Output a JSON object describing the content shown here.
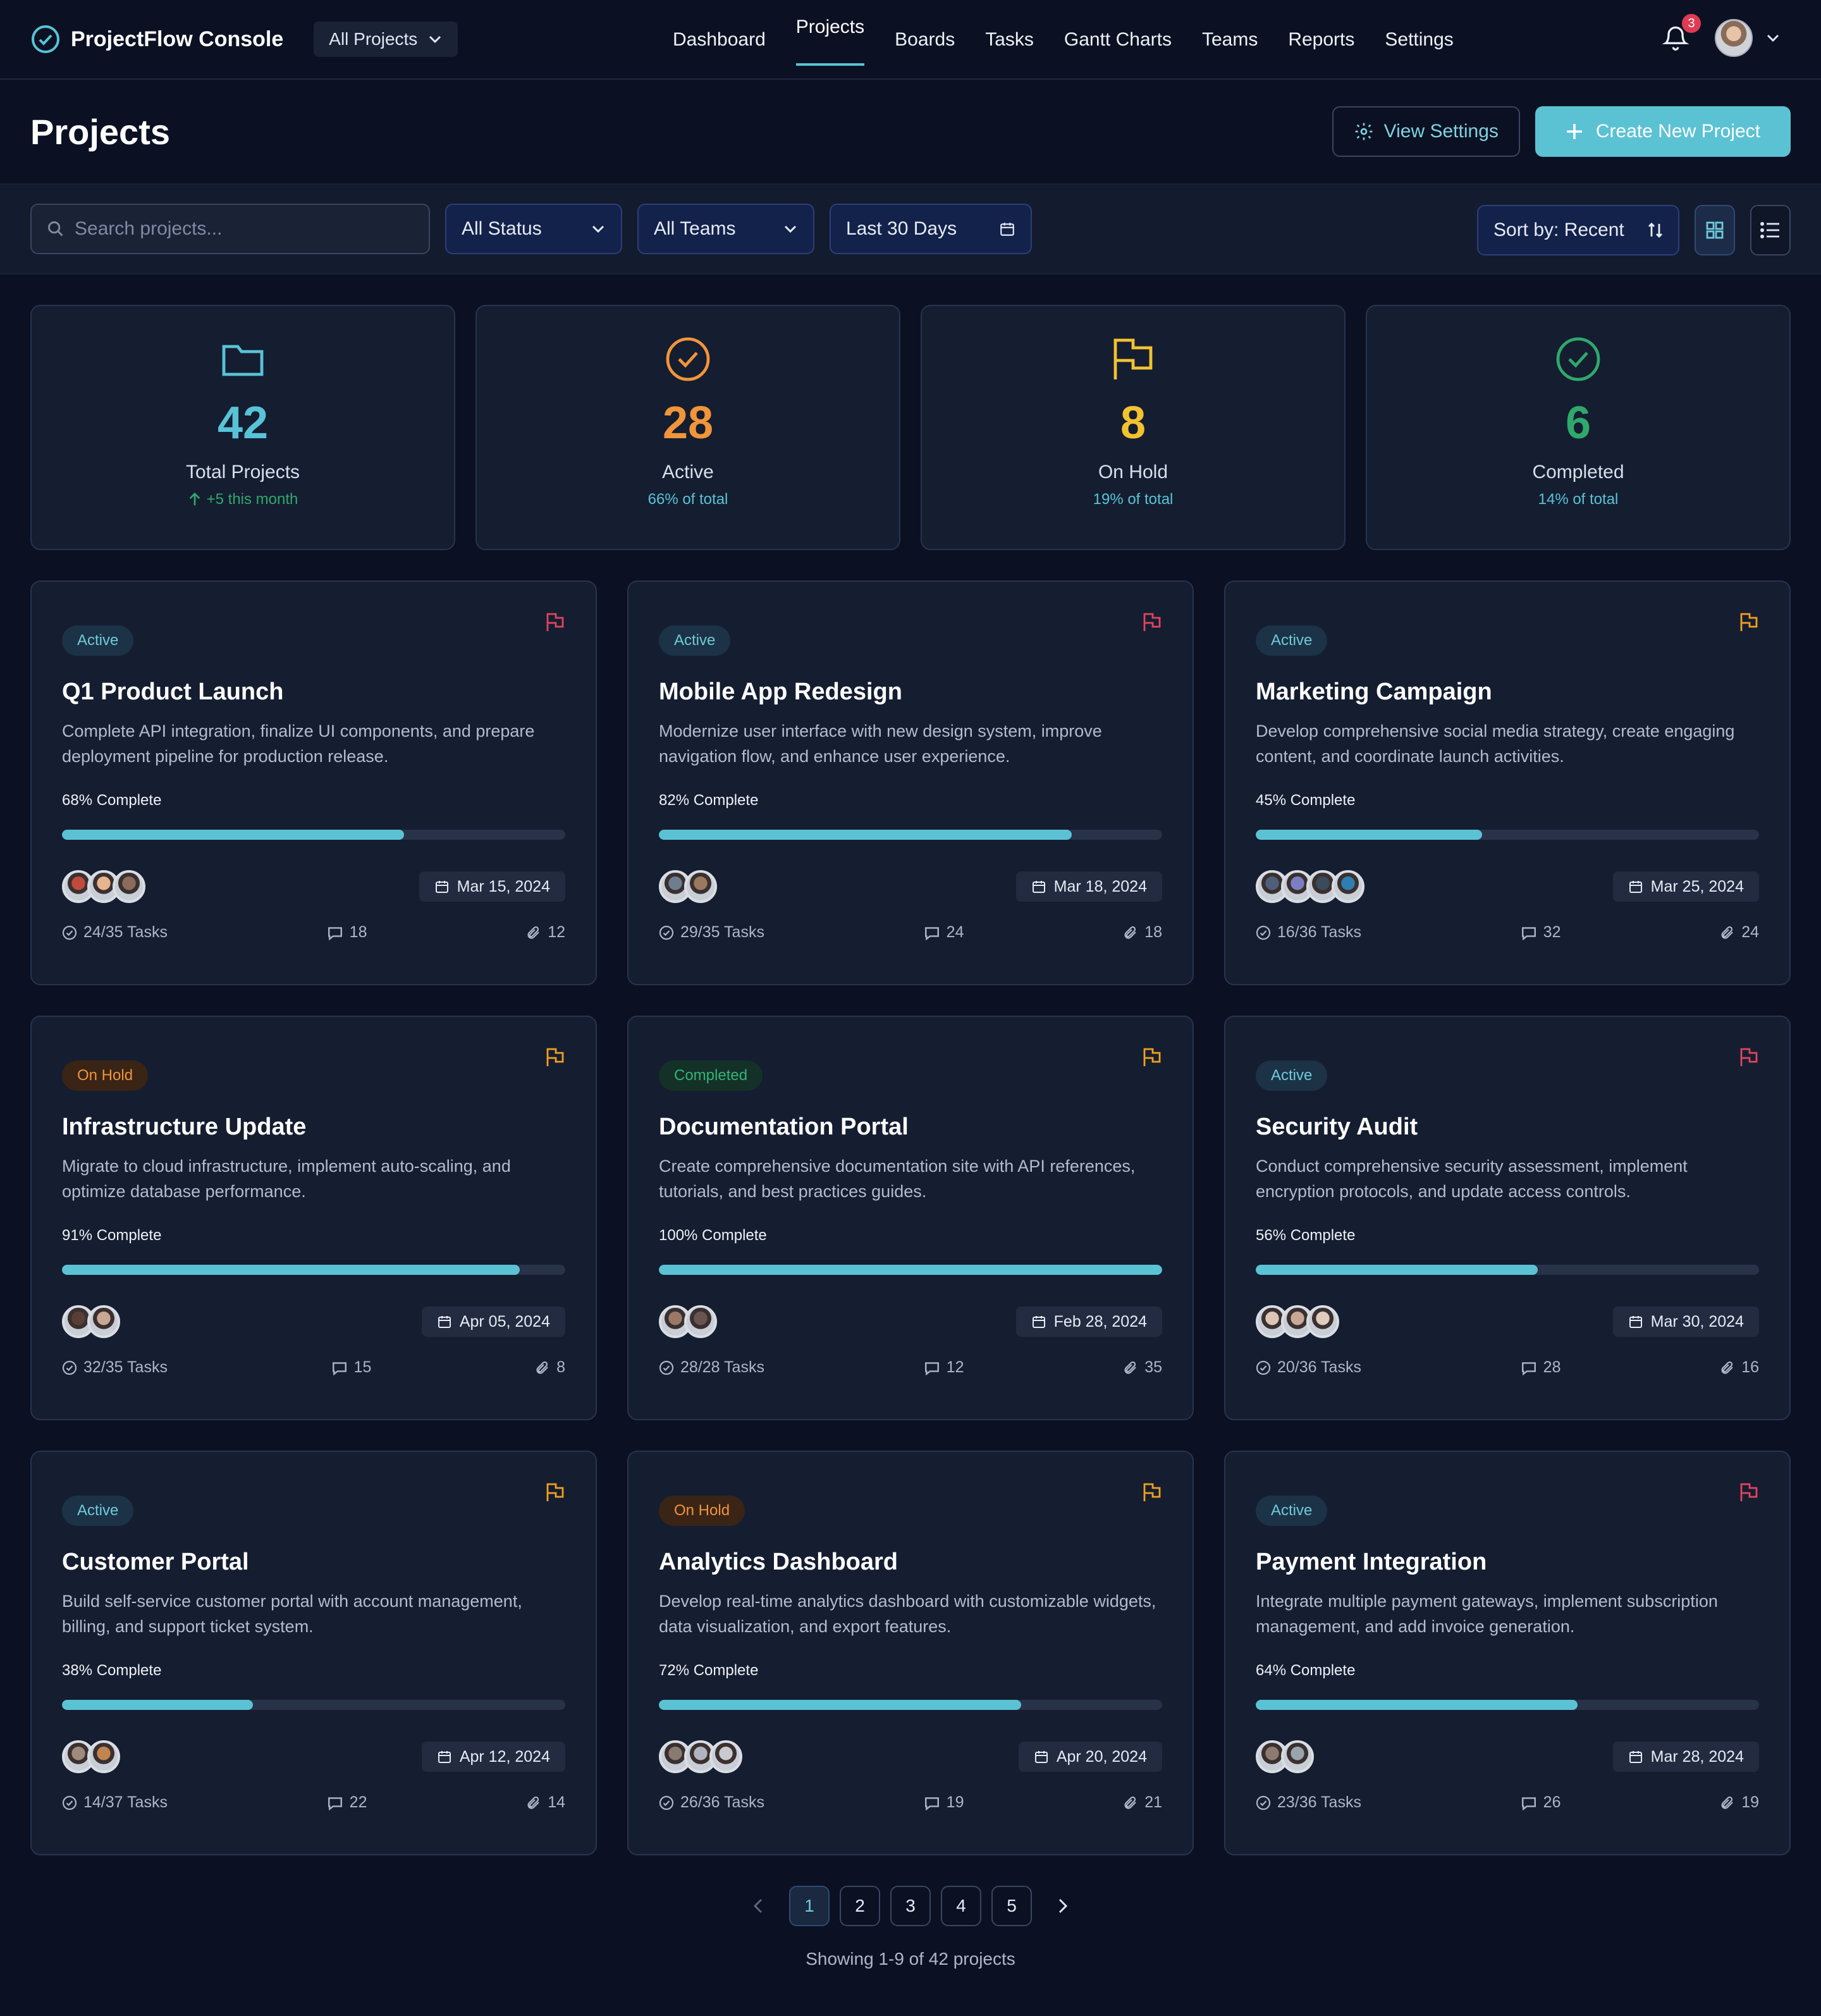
{
  "app": {
    "title": "ProjectFlow Console",
    "project_selector": "All Projects"
  },
  "nav": [
    "Dashboard",
    "Projects",
    "Boards",
    "Tasks",
    "Gantt Charts",
    "Teams",
    "Reports",
    "Settings"
  ],
  "notifications": {
    "count": "3"
  },
  "header": {
    "title": "Projects",
    "view_settings": "View Settings",
    "create_project": "Create New Project"
  },
  "filters": {
    "search_placeholder": "Search projects...",
    "status": "All Status",
    "teams": "All Teams",
    "date_range": "Last 30 Days",
    "sort": "Sort by: Recent"
  },
  "stats": [
    {
      "value": "42",
      "label": "Total Projects",
      "sub": "+5 this month",
      "color": "#58c3d6",
      "icon": "folder-icon"
    },
    {
      "value": "28",
      "label": "Active",
      "sub": "66% of total",
      "color": "#f0953a",
      "icon": "check-circle-icon"
    },
    {
      "value": "8",
      "label": "On Hold",
      "sub": "19% of total",
      "color": "#f2c230",
      "icon": "flag-icon"
    },
    {
      "value": "6",
      "label": "Completed",
      "sub": "14% of total",
      "color": "#2fa86c",
      "icon": "check-circle-icon"
    }
  ],
  "projects": [
    {
      "status": "Active",
      "status_key": "active",
      "flag_color": "#e04560",
      "title": "Q1 Product Launch",
      "desc": "Complete API integration, finalize UI components, and prepare deployment pipeline for production release.",
      "progress_label": "68% Complete",
      "progress": 68,
      "avatars": 3,
      "date": "Mar 15, 2024",
      "tasks": "24/35 Tasks",
      "comments": "18",
      "attachments": "12"
    },
    {
      "status": "Active",
      "status_key": "active",
      "flag_color": "#e04560",
      "title": "Mobile App Redesign",
      "desc": "Modernize user interface with new design system, improve navigation flow, and enhance user experience.",
      "progress_label": "82% Complete",
      "progress": 82,
      "avatars": 2,
      "date": "Mar 18, 2024",
      "tasks": "29/35 Tasks",
      "comments": "24",
      "attachments": "18"
    },
    {
      "status": "Active",
      "status_key": "active",
      "flag_color": "#f0a020",
      "title": "Marketing Campaign",
      "desc": "Develop comprehensive social media strategy, create engaging content, and coordinate launch activities.",
      "progress_label": "45% Complete",
      "progress": 45,
      "avatars": 4,
      "date": "Mar 25, 2024",
      "tasks": "16/36 Tasks",
      "comments": "32",
      "attachments": "24"
    },
    {
      "status": "On Hold",
      "status_key": "hold",
      "flag_color": "#f0a020",
      "title": "Infrastructure Update",
      "desc": "Migrate to cloud infrastructure, implement auto-scaling, and optimize database performance.",
      "progress_label": "91% Complete",
      "progress": 91,
      "avatars": 2,
      "date": "Apr 05, 2024",
      "tasks": "32/35 Tasks",
      "comments": "15",
      "attachments": "8"
    },
    {
      "status": "Completed",
      "status_key": "completed",
      "flag_color": "#f0a020",
      "title": "Documentation Portal",
      "desc": "Create comprehensive documentation site with API references, tutorials, and best practices guides.",
      "progress_label": "100% Complete",
      "progress": 100,
      "avatars": 2,
      "date": "Feb 28, 2024",
      "tasks": "28/28 Tasks",
      "comments": "12",
      "attachments": "35"
    },
    {
      "status": "Active",
      "status_key": "active",
      "flag_color": "#e04560",
      "title": "Security Audit",
      "desc": "Conduct comprehensive security assessment, implement encryption protocols, and update access controls.",
      "progress_label": "56% Complete",
      "progress": 56,
      "avatars": 3,
      "date": "Mar 30, 2024",
      "tasks": "20/36 Tasks",
      "comments": "28",
      "attachments": "16"
    },
    {
      "status": "Active",
      "status_key": "active",
      "flag_color": "#f0a020",
      "title": "Customer Portal",
      "desc": "Build self-service customer portal with account management, billing, and support ticket system.",
      "progress_label": "38% Complete",
      "progress": 38,
      "avatars": 2,
      "date": "Apr 12, 2024",
      "tasks": "14/37 Tasks",
      "comments": "22",
      "attachments": "14"
    },
    {
      "status": "On Hold",
      "status_key": "hold",
      "flag_color": "#f0a020",
      "title": "Analytics Dashboard",
      "desc": "Develop real-time analytics dashboard with customizable widgets, data visualization, and export features.",
      "progress_label": "72% Complete",
      "progress": 72,
      "avatars": 3,
      "date": "Apr 20, 2024",
      "tasks": "26/36 Tasks",
      "comments": "19",
      "attachments": "21"
    },
    {
      "status": "Active",
      "status_key": "active",
      "flag_color": "#e04560",
      "title": "Payment Integration",
      "desc": "Integrate multiple payment gateways, implement subscription management, and add invoice generation.",
      "progress_label": "64% Complete",
      "progress": 64,
      "avatars": 2,
      "date": "Mar 28, 2024",
      "tasks": "23/36 Tasks",
      "comments": "26",
      "attachments": "19"
    }
  ],
  "pagination": {
    "pages": [
      "1",
      "2",
      "3",
      "4",
      "5"
    ],
    "current": "1",
    "showing": "Showing 1-9 of 42 projects"
  }
}
